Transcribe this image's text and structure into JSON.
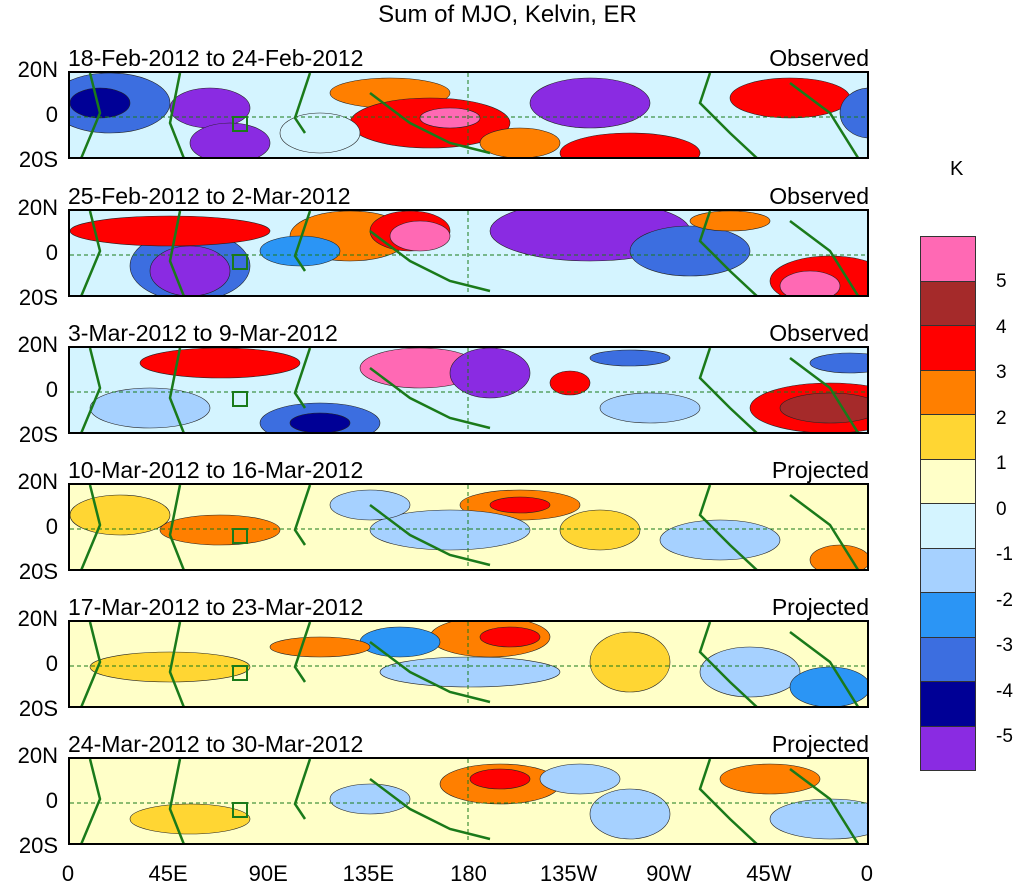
{
  "title": "Sum of MJO, Kelvin, ER",
  "panels": [
    {
      "dates": "18-Feb-2012 to 24-Feb-2012",
      "status": "Observed"
    },
    {
      "dates": "25-Feb-2012 to 2-Mar-2012",
      "status": "Observed"
    },
    {
      "dates": "3-Mar-2012 to 9-Mar-2012",
      "status": "Observed"
    },
    {
      "dates": "10-Mar-2012 to 16-Mar-2012",
      "status": "Projected"
    },
    {
      "dates": "17-Mar-2012 to 23-Mar-2012",
      "status": "Projected"
    },
    {
      "dates": "24-Mar-2012 to 30-Mar-2012",
      "status": "Projected"
    }
  ],
  "y_ticks": [
    "20N",
    "0",
    "20S"
  ],
  "x_ticks": [
    "0",
    "45E",
    "90E",
    "135E",
    "180",
    "135W",
    "90W",
    "45W",
    "0"
  ],
  "colorbar": {
    "units": "K",
    "labels": [
      "5",
      "4",
      "3",
      "2",
      "1",
      "0",
      "-1",
      "-2",
      "-3",
      "-4",
      "-5"
    ],
    "colors": [
      "#ff69b4",
      "#a52a2a",
      "#ff0000",
      "#ff7f00",
      "#ffd633",
      "#ffffc8",
      "#d4f4ff",
      "#a6d1ff",
      "#2b95f5",
      "#3c6ee0",
      "#000096",
      "#8a2be2"
    ]
  }
}
